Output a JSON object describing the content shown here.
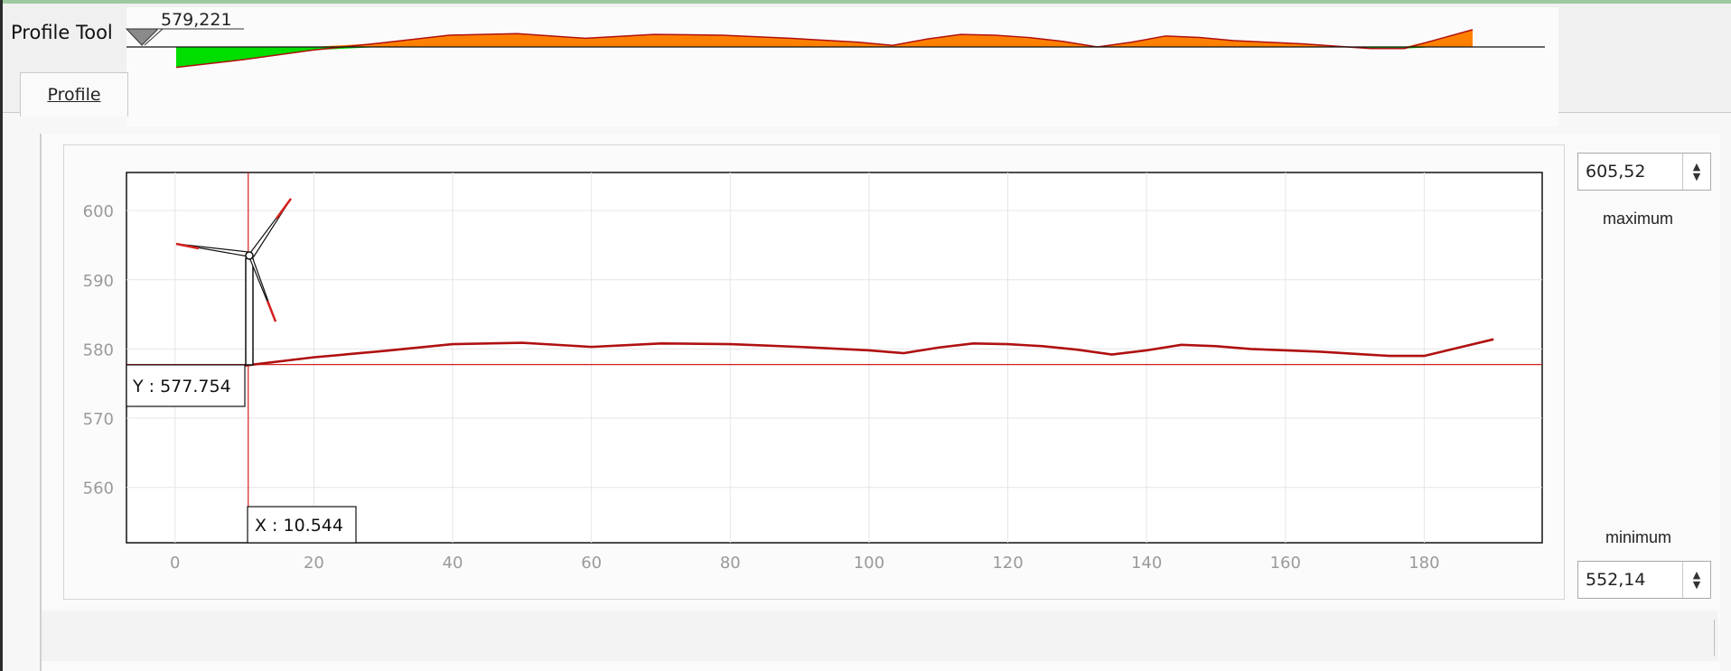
{
  "window": {
    "title": "Profile Tool",
    "tab_label": "Profile",
    "cursor_elevation": "579,221"
  },
  "controls": {
    "maximum_value": "605,52",
    "maximum_label": "maximum",
    "minimum_value": "552,14",
    "minimum_label": "minimum"
  },
  "readout": {
    "x_label": "X : 10.544",
    "y_label": "Y : 577.754"
  },
  "colors": {
    "profile_line": "#b01010",
    "fill_above": "#ff8000",
    "fill_below": "#00dd00",
    "cursor": "#d42020"
  },
  "chart_data": {
    "type": "line",
    "xlim": [
      -7,
      197
    ],
    "ylim": [
      552,
      605.5
    ],
    "x_ticks": [
      0,
      20,
      40,
      60,
      80,
      100,
      120,
      140,
      160,
      180
    ],
    "y_ticks": [
      560,
      570,
      580,
      590,
      600
    ],
    "grid": true,
    "horizontal_reference": 577.754,
    "cursor_x": 10.544,
    "x": [
      0,
      10,
      20,
      30,
      40,
      50,
      60,
      70,
      80,
      90,
      100,
      105,
      110,
      115,
      120,
      125,
      130,
      135,
      140,
      145,
      150,
      155,
      160,
      165,
      170,
      175,
      180,
      185,
      190
    ],
    "y": [
      576.6,
      577.6,
      578.8,
      579.7,
      580.7,
      580.9,
      580.3,
      580.8,
      580.7,
      580.3,
      579.8,
      579.4,
      580.2,
      580.8,
      580.7,
      580.4,
      579.9,
      579.2,
      579.8,
      580.6,
      580.4,
      580.0,
      579.8,
      579.6,
      579.3,
      579.0,
      579.0,
      580.2,
      581.4
    ]
  }
}
